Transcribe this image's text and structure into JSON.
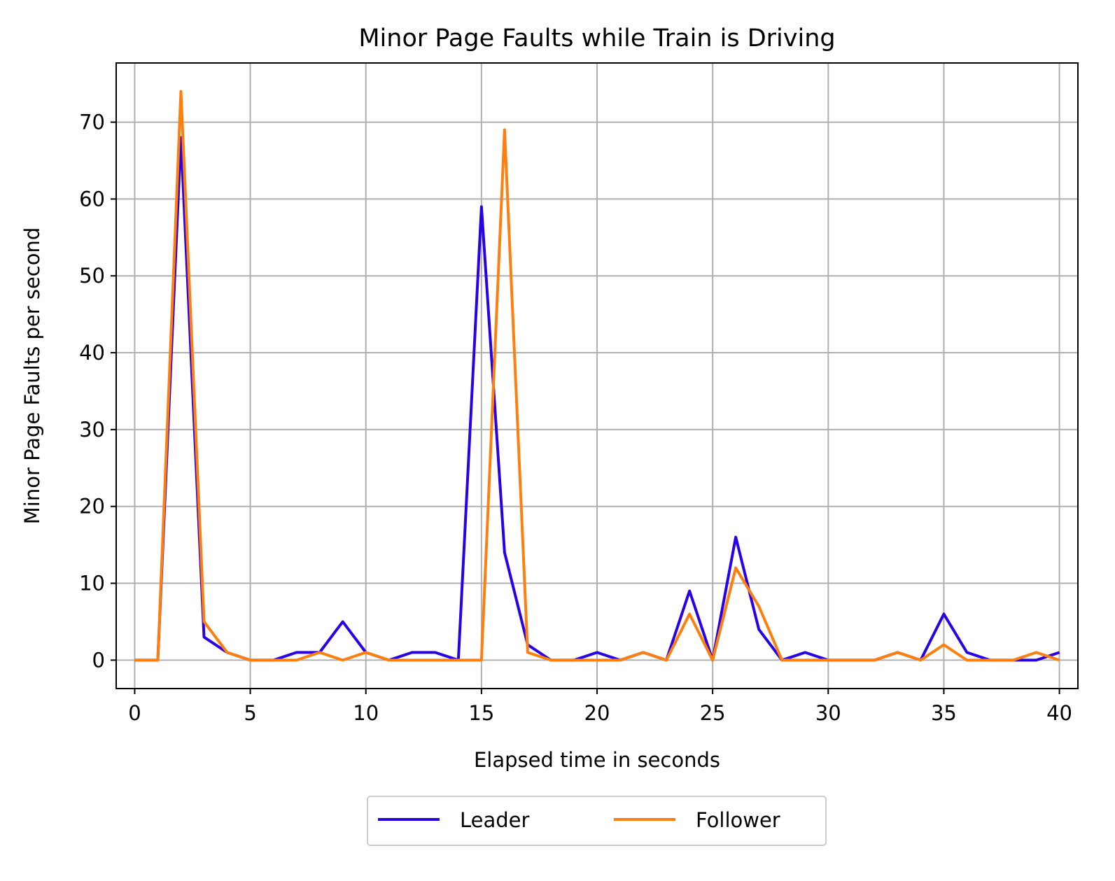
{
  "chart_data": {
    "type": "line",
    "title": "Minor Page Faults while Train is Driving",
    "xlabel": "Elapsed time in seconds",
    "ylabel": "Minor Page Faults per second",
    "xlim": [
      -0.8,
      40.8
    ],
    "ylim": [
      -3.7,
      77.7
    ],
    "xticks": [
      0,
      5,
      10,
      15,
      20,
      25,
      30,
      35,
      40
    ],
    "yticks": [
      0,
      10,
      20,
      30,
      40,
      50,
      60,
      70
    ],
    "grid": true,
    "legend_position": "bottom-center",
    "x": [
      0,
      1,
      2,
      3,
      4,
      5,
      6,
      7,
      8,
      9,
      10,
      11,
      12,
      13,
      14,
      15,
      16,
      17,
      18,
      19,
      20,
      21,
      22,
      23,
      24,
      25,
      26,
      27,
      28,
      29,
      30,
      31,
      32,
      33,
      34,
      35,
      36,
      37,
      38,
      39,
      40
    ],
    "series": [
      {
        "name": "Leader",
        "color": "#2a00e6",
        "values": [
          0,
          0,
          68,
          3,
          1,
          0,
          0,
          1,
          1,
          5,
          1,
          0,
          1,
          1,
          0,
          59,
          14,
          2,
          0,
          0,
          1,
          0,
          1,
          0,
          9,
          0,
          16,
          4,
          0,
          1,
          0,
          0,
          0,
          1,
          0,
          6,
          1,
          0,
          0,
          0,
          1
        ]
      },
      {
        "name": "Follower",
        "color": "#ff7f0e",
        "values": [
          0,
          0,
          74,
          5,
          1,
          0,
          0,
          0,
          1,
          0,
          1,
          0,
          0,
          0,
          0,
          0,
          69,
          1,
          0,
          0,
          0,
          0,
          1,
          0,
          6,
          0,
          12,
          7,
          0,
          0,
          0,
          0,
          0,
          1,
          0,
          2,
          0,
          0,
          0,
          1,
          0
        ]
      }
    ]
  }
}
